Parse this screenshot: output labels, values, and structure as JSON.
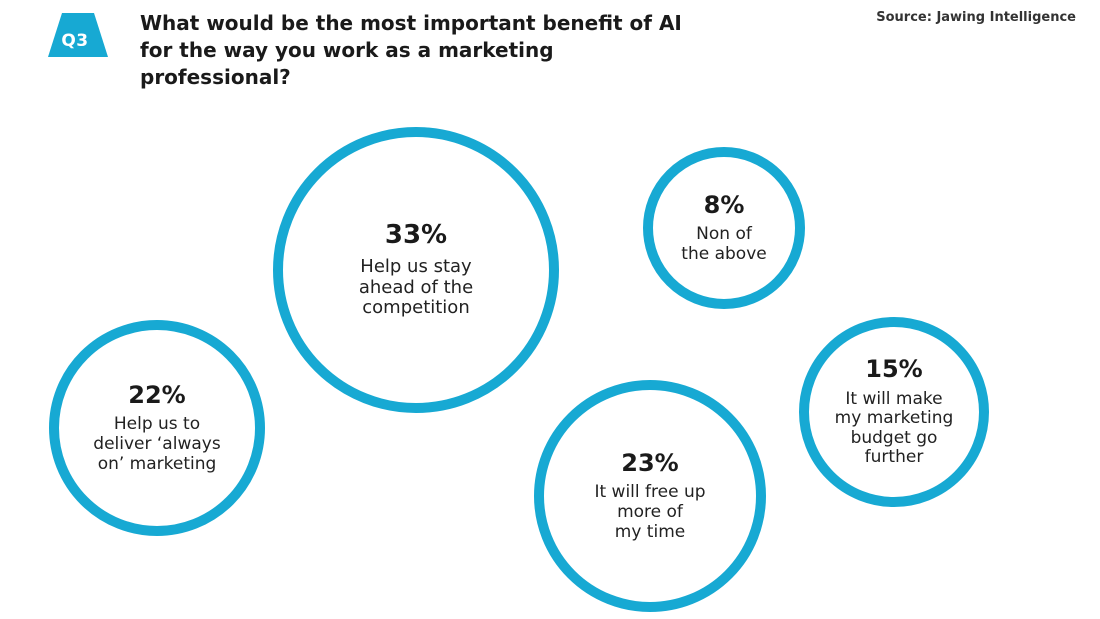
{
  "badge": "Q3",
  "title": "What would be the most important benefit of AI for the way you work as a marketing professional?",
  "source": "Source: Jawing Intelligence",
  "accent_color": "#17a9d3",
  "chart_data": {
    "type": "bubble",
    "title": "What would be the most important benefit of AI for the way you work as a marketing professional?",
    "unit": "%",
    "series": [
      {
        "label": "Help us stay ahead of the competition",
        "display_label": "Help us stay\nahead of the\ncompetition",
        "value": 33
      },
      {
        "label": "Help us to deliver 'always on' marketing",
        "display_label": "Help us to\ndeliver ‘always\non’ marketing",
        "value": 22
      },
      {
        "label": "It will free up more of my time",
        "display_label": "It will free up\nmore of\nmy time",
        "value": 23
      },
      {
        "label": "Non of the above",
        "display_label": "Non of\nthe above",
        "value": 8
      },
      {
        "label": "It will make my marketing budget go further",
        "display_label": "It will make\nmy marketing\nbudget go\nfurther",
        "value": 15
      }
    ]
  }
}
